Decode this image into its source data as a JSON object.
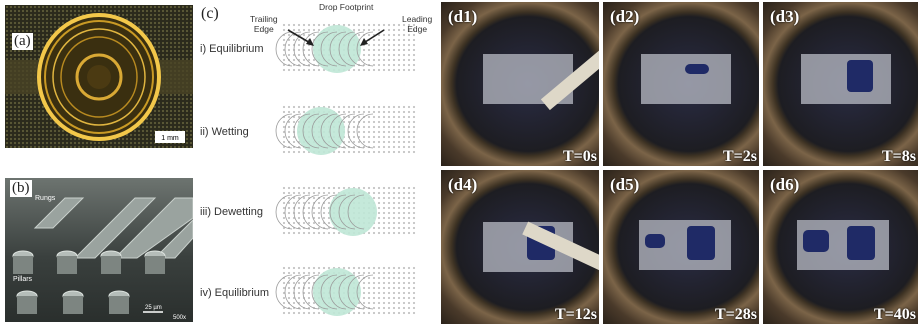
{
  "panel_a": {
    "tag": "(a)",
    "scale_bar": "1 mm"
  },
  "panel_b": {
    "tag": "(b)",
    "label_rungs": "Rungs",
    "label_pillars": "Pillars",
    "scale_bar": "25 µm",
    "magnification": "500x"
  },
  "panel_c": {
    "tag": "(c)",
    "drop_footprint": "Drop Footprint",
    "trailing_edge": "Trailing\nEdge",
    "leading_edge": "Leading\nEdge",
    "steps": [
      "i) Equilibrium",
      "ii) Wetting",
      "iii) Dewetting",
      "iv) Equilibrium"
    ],
    "drop_color": "#bfe7d6"
  },
  "panel_d": [
    {
      "tag": "(d1)",
      "time": "T=0s"
    },
    {
      "tag": "(d2)",
      "time": "T=2s"
    },
    {
      "tag": "(d3)",
      "time": "T=8s"
    },
    {
      "tag": "(d4)",
      "time": "T=12s"
    },
    {
      "tag": "(d5)",
      "time": "T=28s"
    },
    {
      "tag": "(d6)",
      "time": "T=40s"
    }
  ]
}
